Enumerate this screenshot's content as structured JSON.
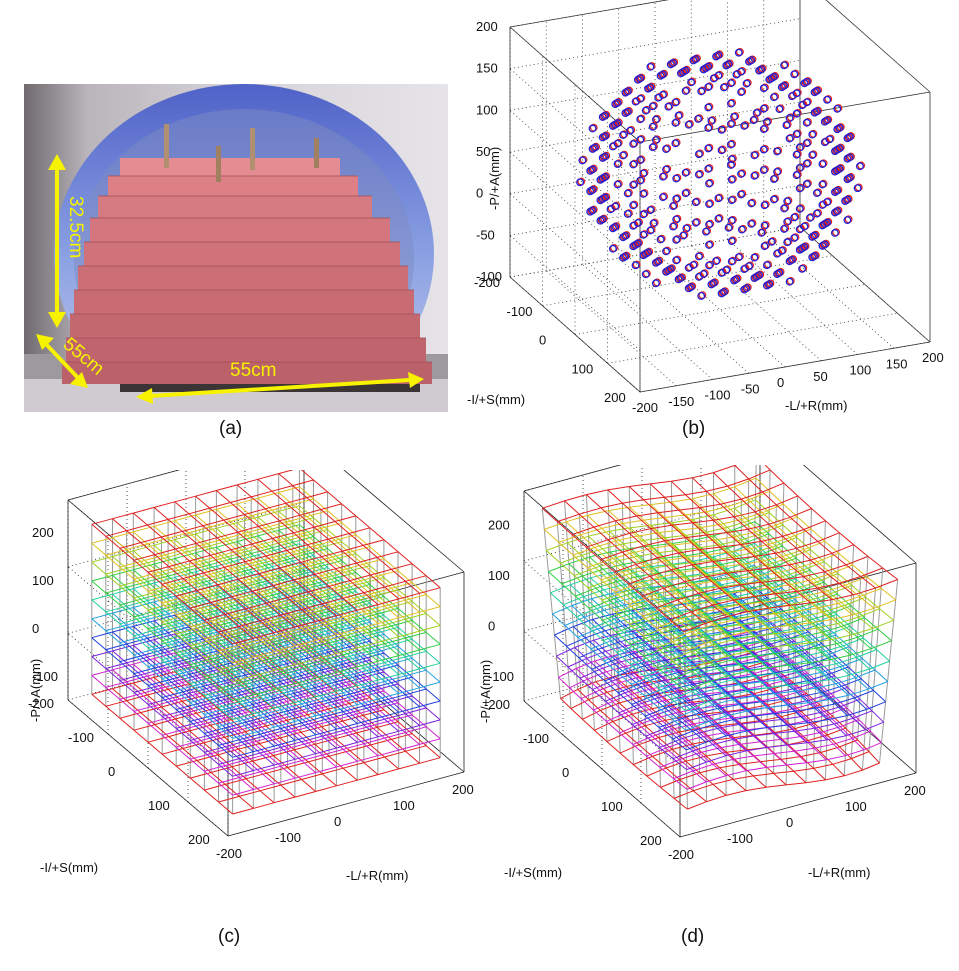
{
  "figure": {
    "panel_a": {
      "caption": "(a)",
      "dimensions": {
        "height": "32.5cm",
        "depth": "55cm",
        "width": "55cm"
      },
      "colors": {
        "phantom": "#d9777d",
        "bore": "#c8c6cf",
        "arrow": "#f6f200",
        "tunnel": "#6f7fcf"
      }
    },
    "panel_b": {
      "caption": "(b)",
      "ylabel": "-P/+A(mm)",
      "xlabel": "-L/+R(mm)",
      "zlabel": "-I/+S(mm)",
      "colors": {
        "marker_a": "#1f1fd6",
        "marker_b": "#e01d1d"
      }
    },
    "panel_c": {
      "caption": "(c)",
      "ylabel": "-P/+A(mm)",
      "xlabel": "-L/+R(mm)",
      "zlabel": "-I/+S(mm)"
    },
    "panel_d": {
      "caption": "(d)",
      "ylabel": "-P/+A(mm)",
      "xlabel": "-L/+R(mm)",
      "zlabel": "-I/+S(mm)"
    }
  },
  "chart_data": [
    {
      "type": "scatter",
      "panel": "b",
      "projection": "3d",
      "series": [
        {
          "marker": "o",
          "color": "#1f1fd6",
          "points": "grid",
          "step": 20,
          "extent_mm": 230
        },
        {
          "marker": "o",
          "color": "#e01d1d",
          "points": "grid",
          "step": 20,
          "extent_mm": 230
        }
      ],
      "x_axis": {
        "label": "-L/+R(mm)",
        "ticks": [
          "-200",
          "-150",
          "-100",
          "-50",
          "0",
          "50",
          "100",
          "150",
          "200"
        ]
      },
      "y_axis": {
        "label": "-P/+A(mm)",
        "ticks": [
          "-100",
          "-50",
          "0",
          "50",
          "100",
          "150",
          "200"
        ]
      },
      "z_axis": {
        "label": "-I/+S(mm)",
        "ticks": [
          "-200",
          "-100",
          "0",
          "100",
          "200"
        ]
      },
      "grid": true
    },
    {
      "type": "line",
      "panel": "c",
      "projection": "3d",
      "mesh": "regular",
      "x_axis": {
        "label": "-L/+R(mm)",
        "ticks": [
          "-200",
          "-100",
          "0",
          "100",
          "200"
        ]
      },
      "y_axis": {
        "label": "-P/+A(mm)",
        "ticks": [
          "-100",
          "0",
          "100",
          "200"
        ]
      },
      "z_axis": {
        "label": "-I/+S(mm)",
        "ticks": [
          "-200",
          "-100",
          "0",
          "100",
          "200"
        ]
      },
      "layer_colors": [
        "#e02020",
        "#d020d0",
        "#7a20e0",
        "#2040e0",
        "#20a0e0",
        "#20d0a0",
        "#30d040",
        "#a0d020",
        "#e0c020",
        "#e02020"
      ],
      "grid": true
    },
    {
      "type": "line",
      "panel": "d",
      "projection": "3d",
      "mesh": "distorted",
      "x_axis": {
        "label": "-L/+R(mm)",
        "ticks": [
          "-200",
          "-100",
          "0",
          "100",
          "200"
        ]
      },
      "y_axis": {
        "label": "-P/+A(mm)",
        "ticks": [
          "-100",
          "0",
          "100",
          "200"
        ]
      },
      "z_axis": {
        "label": "-I/+S(mm)",
        "ticks": [
          "-200",
          "-100",
          "0",
          "100",
          "200"
        ]
      },
      "layer_colors": [
        "#e02020",
        "#d020d0",
        "#7a20e0",
        "#2040e0",
        "#20a0e0",
        "#20d0a0",
        "#30d040",
        "#a0d020",
        "#e0c020",
        "#e02020"
      ],
      "grid": true
    }
  ]
}
